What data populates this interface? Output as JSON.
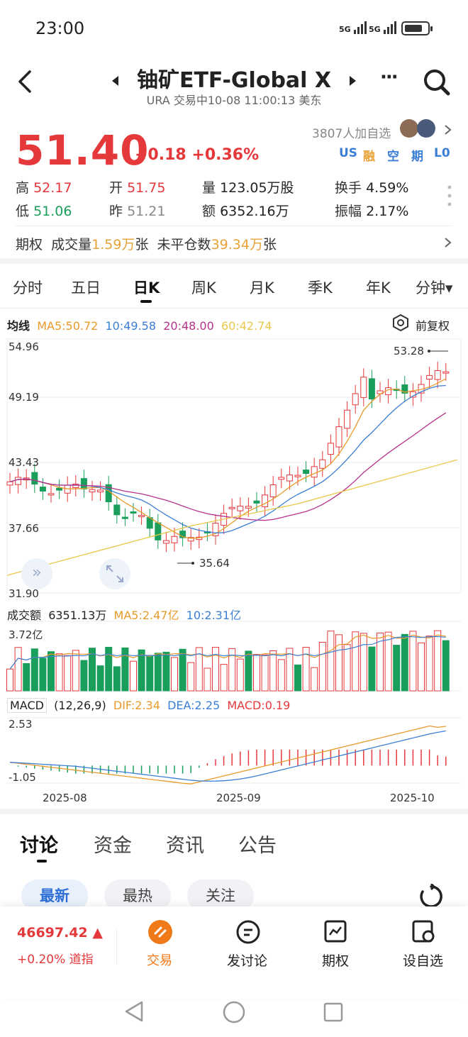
{
  "status_bar": {
    "time": "23:00",
    "signal1": "5G",
    "signal2": "5G"
  },
  "header": {
    "title": "铀矿ETF-Global X",
    "subtitle": "URA 交易中10-08 11:00:13 美东",
    "more_label": "···"
  },
  "quote": {
    "price": "51.40",
    "change": "+0.18",
    "change_pct": "+0.36%",
    "followers": "3807人加自选",
    "tags": [
      "US",
      "融",
      "空",
      "期",
      "L0"
    ],
    "high_label": "高",
    "high": "52.17",
    "low_label": "低",
    "low": "51.06",
    "open_label": "开",
    "open": "51.75",
    "prev_label": "昨",
    "prev": "51.21",
    "vol_label": "量",
    "vol": "123.05万股",
    "amt_label": "额",
    "amt": "6352.16万",
    "turnover_label": "换手",
    "turnover": "4.59%",
    "amplitude_label": "振幅",
    "amplitude": "2.17%"
  },
  "options": {
    "label": "期权",
    "vol_label": "成交量",
    "vol": "1.59万",
    "vol_unit": "张",
    "oi_label": "未平仓数",
    "oi": "39.34万",
    "oi_unit": "张"
  },
  "tabs": [
    "分时",
    "五日",
    "日K",
    "周K",
    "月K",
    "季K",
    "年K",
    "分钟▾"
  ],
  "active_tab": "日K",
  "ma": {
    "label": "均线",
    "ma5": "MA5:50.72",
    "ma10": "10:49.58",
    "ma20": "20:48.00",
    "ma60": "60:42.74",
    "adjust": "前复权"
  },
  "price_axis": [
    "54.96",
    "49.19",
    "43.43",
    "37.66",
    "31.90"
  ],
  "hi_marker": "53.28",
  "lo_marker": "35.64",
  "volume": {
    "label": "成交额",
    "value": "6351.13万",
    "ma5": "MA5:2.47亿",
    "ma10": "10:2.31亿",
    "axis_top": "3.72亿"
  },
  "macd": {
    "label": "MACD",
    "params": "(12,26,9)",
    "dif": "DIF:2.34",
    "dea": "DEA:2.25",
    "macd": "MACD:0.19",
    "axis_top": "2.53",
    "axis_bot": "-1.05"
  },
  "dates": [
    "2025-08",
    "2025-09",
    "2025-10"
  ],
  "section_tabs": [
    "讨论",
    "资金",
    "资讯",
    "公告"
  ],
  "pills": [
    "最新",
    "最热",
    "关注"
  ],
  "bottom": {
    "index_value": "46697.42 ▲",
    "index_change": "+0.20% 道指",
    "trade": "交易",
    "discuss": "发讨论",
    "options": "期权",
    "watch": "设自选"
  },
  "colors": {
    "up": "#e5383b",
    "down": "#1a9e5c",
    "ma5": "#e89a2a",
    "ma10": "#3a7fd5",
    "ma20": "#b5338a",
    "ma60": "#e8c84a"
  }
}
